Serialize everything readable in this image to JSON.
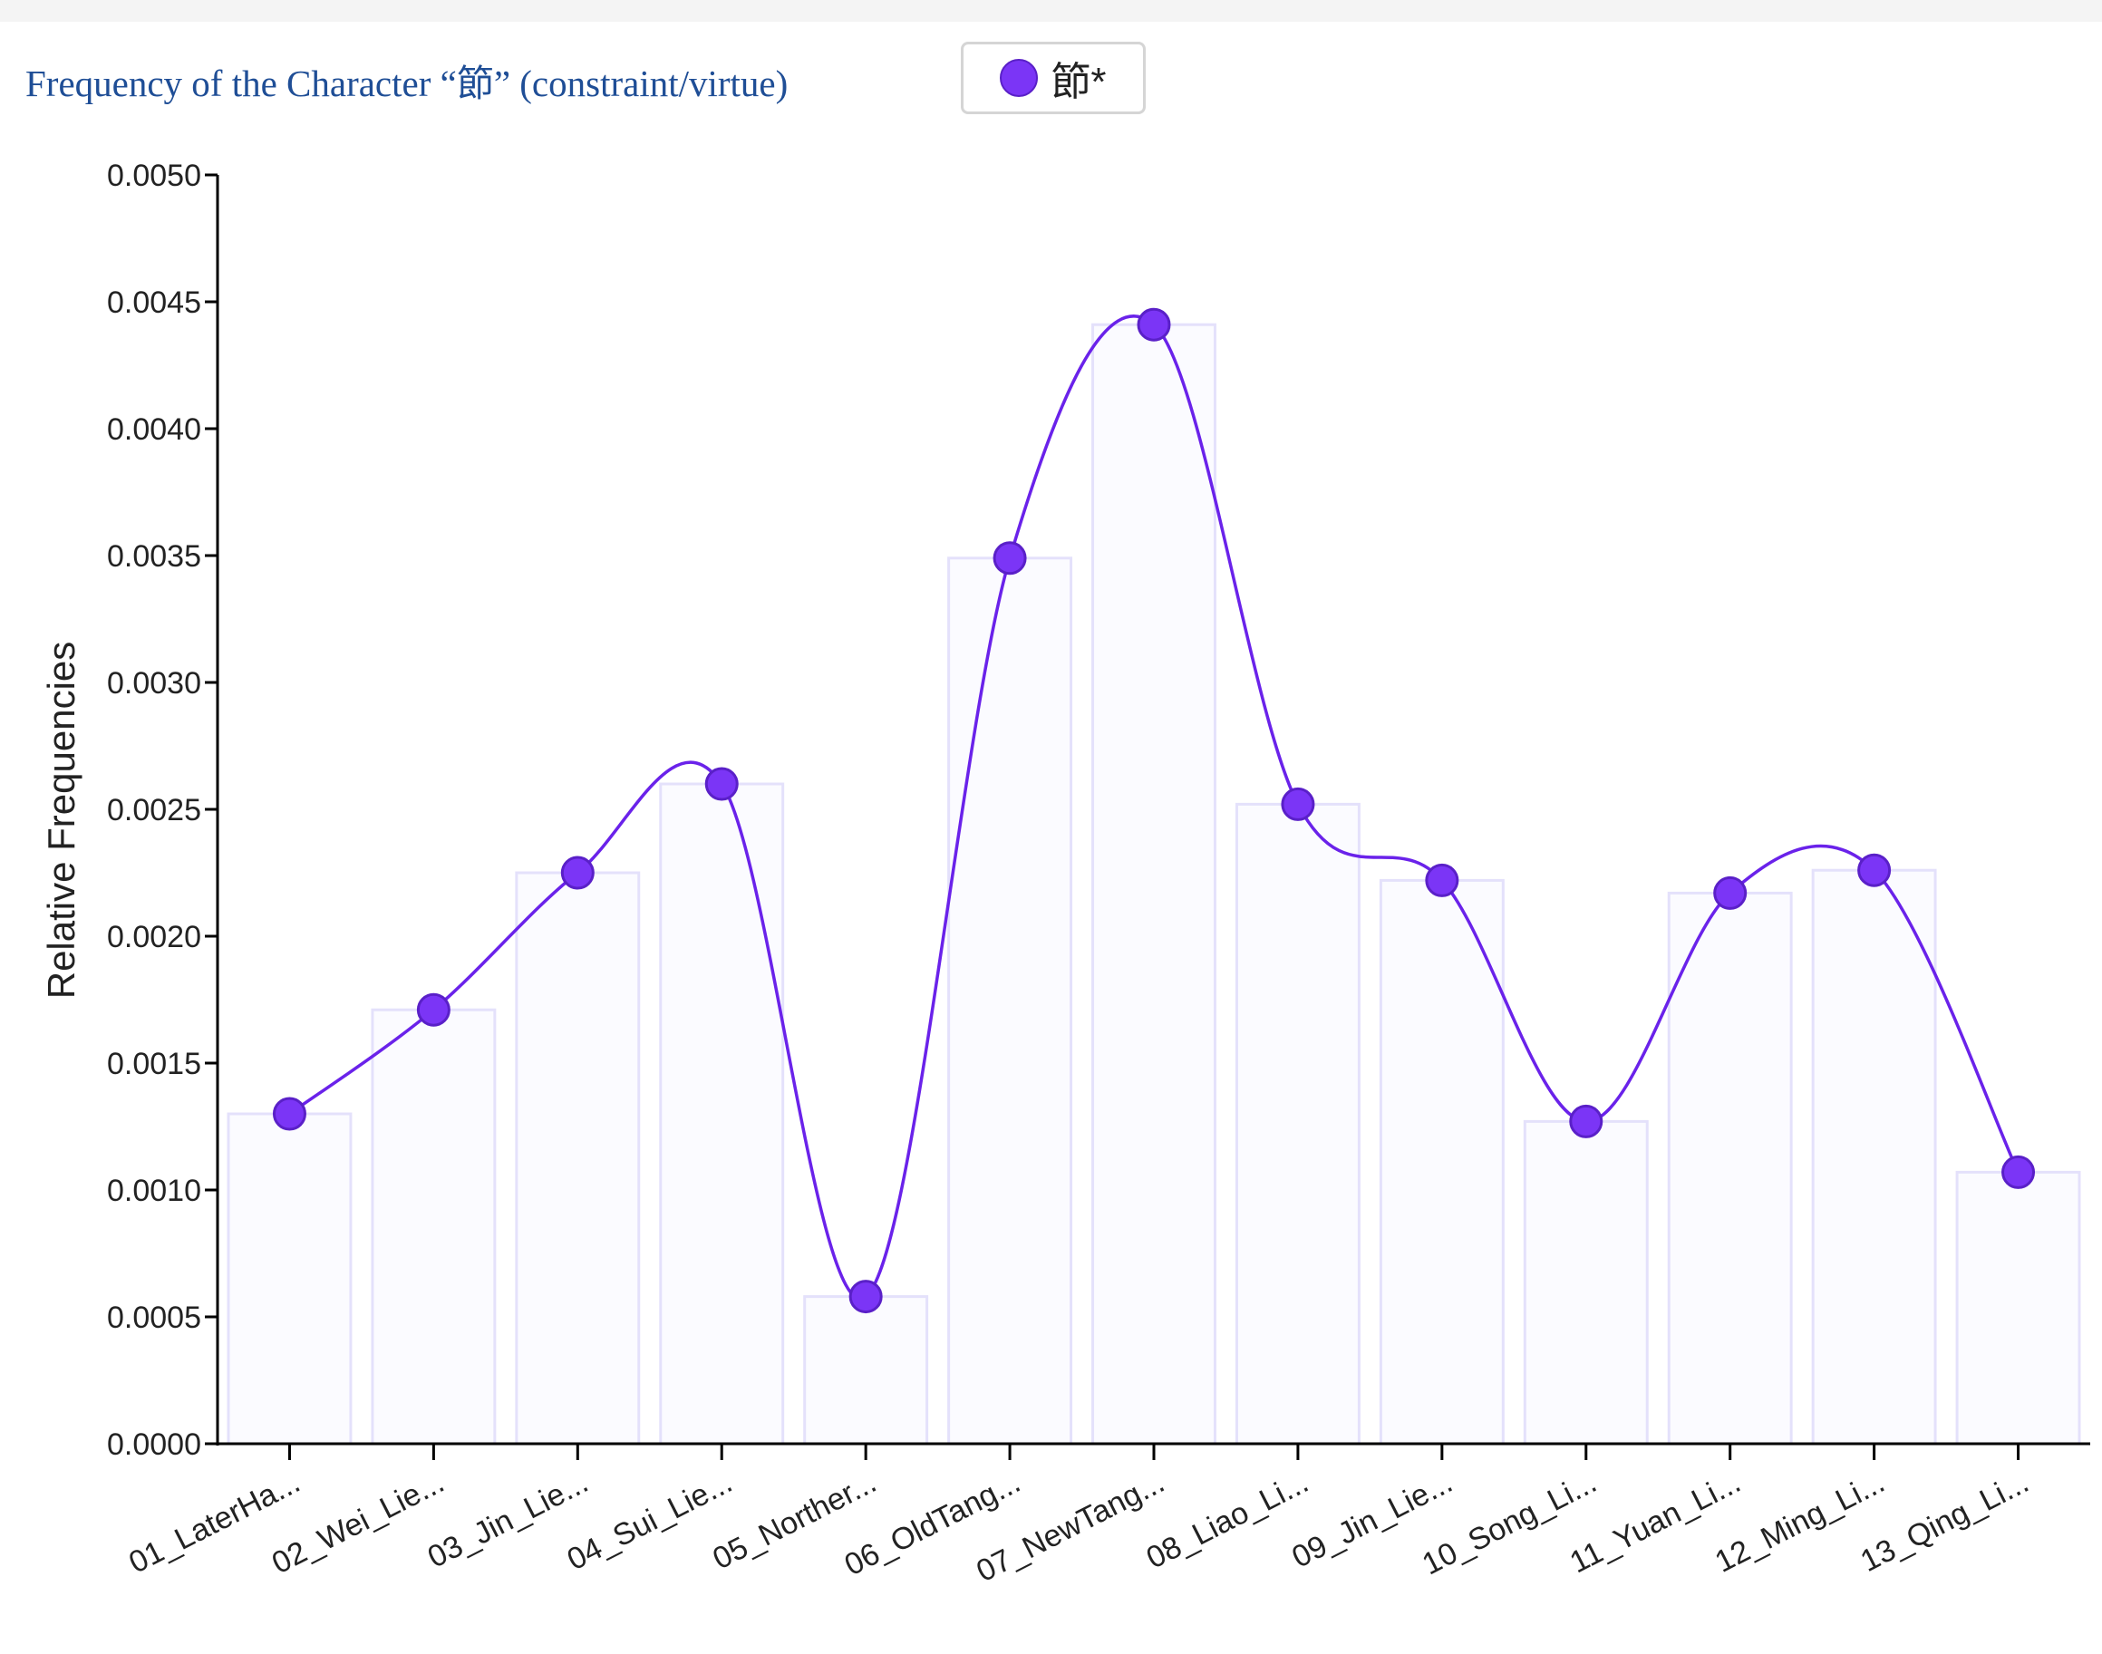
{
  "title": "Frequency of the Character “節” (constraint/virtue)",
  "legend": {
    "label": "節*",
    "color": "#7b35f6"
  },
  "colors": {
    "line": "#6a22ea",
    "point_fill": "#7b35f6",
    "point_stroke": "#5a20c8",
    "bar_fill": "#fbfbff",
    "bar_stroke": "#e4e1fb",
    "axis": "#000000"
  },
  "chart_data": {
    "type": "bar",
    "ylabel": "Relative Frequencies",
    "xlabel": "",
    "ylim": [
      0,
      0.005
    ],
    "yticks": [
      "0.0000",
      "0.0005",
      "0.0010",
      "0.0015",
      "0.0020",
      "0.0025",
      "0.0030",
      "0.0035",
      "0.0040",
      "0.0045",
      "0.0050"
    ],
    "categories": [
      "01_LaterHa...",
      "02_Wei_Lie...",
      "03_Jin_Lie...",
      "04_Sui_Lie...",
      "05_Norther...",
      "06_OldTang...",
      "07_NewTang...",
      "08_Liao_Li...",
      "09_Jin_Lie...",
      "10_Song_Li...",
      "11_Yuan_Li...",
      "12_Ming_Li...",
      "13_Qing_Li..."
    ],
    "series": [
      {
        "name": "節*",
        "values": [
          0.0013,
          0.00171,
          0.00225,
          0.0026,
          0.00058,
          0.00349,
          0.00441,
          0.00252,
          0.00222,
          0.00127,
          0.00217,
          0.00226,
          0.00107
        ]
      }
    ],
    "overlay": "smooth line with points",
    "grid": false,
    "legend_position": "top"
  }
}
